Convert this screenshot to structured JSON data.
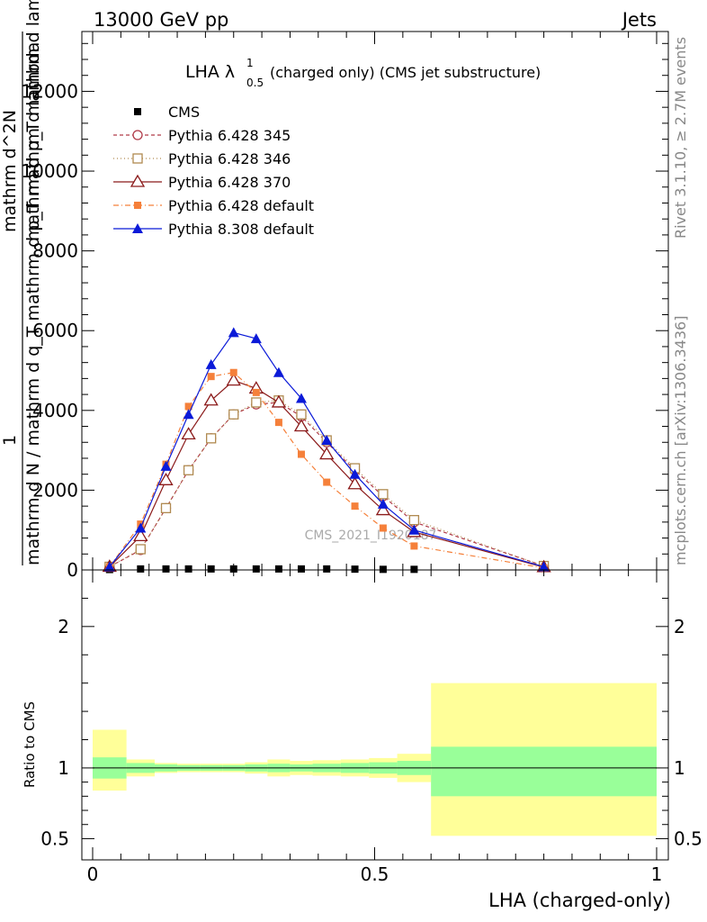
{
  "header": {
    "left": "13000 GeV pp",
    "right": "Jets"
  },
  "side_labels": {
    "rivet": "Rivet 3.1.10, ≥ 2.7M events",
    "mcplots": "mcplots.cern.ch [arXiv:1306.3436]"
  },
  "watermark": "CMS_2021_I1920187",
  "chart_data": [
    {
      "type": "line",
      "title_main": "LHA λ",
      "title_sup": "1",
      "title_sub": "0.5",
      "title_rest": "(charged only) (CMS jet substructure)",
      "ylabel_num": "1",
      "ylabel_den_lines": [
        "mathrm d N / mathrm d q_T mathrm d p_T mathrm d lambda",
        "mathrm d^2N"
      ],
      "ylabel_garbled": [
        "mathrm d^2N",
        "mathrm d p_T mathrm d lambda",
        "mathrm d N / mathrm d q mathrm d",
        "1"
      ],
      "xlim": [
        0,
        1
      ],
      "ylim": [
        0,
        13500
      ],
      "yticks": [
        0,
        2000,
        4000,
        6000,
        8000,
        10000,
        12000
      ],
      "ytick_labels": [
        "0",
        "2000",
        "4000",
        "6000",
        "8000",
        "10000",
        "12000"
      ],
      "legend_position": "top-left",
      "series": [
        {
          "name": "CMS",
          "color": "#000000",
          "marker": "square-filled",
          "dash": "none",
          "x": [
            0.03,
            0.085,
            0.13,
            0.17,
            0.21,
            0.25,
            0.29,
            0.33,
            0.37,
            0.415,
            0.465,
            0.515,
            0.57
          ],
          "y": [
            10,
            25,
            25,
            25,
            25,
            25,
            25,
            25,
            25,
            25,
            20,
            15,
            15
          ]
        },
        {
          "name": "Pythia 6.428 345",
          "color": "#b03a48",
          "marker": "circle-open",
          "dash": "4,3",
          "x": [
            0.03,
            0.085,
            0.13,
            0.17,
            0.21,
            0.25,
            0.29,
            0.33,
            0.37,
            0.415,
            0.465,
            0.515,
            0.57,
            0.8
          ],
          "y": [
            80,
            500,
            1550,
            2500,
            3300,
            3900,
            4150,
            4200,
            3850,
            3200,
            2500,
            1850,
            1200,
            100
          ]
        },
        {
          "name": "Pythia 6.428 346",
          "color": "#b08a50",
          "marker": "square-open",
          "dash": "1,3",
          "x": [
            0.03,
            0.085,
            0.13,
            0.17,
            0.21,
            0.25,
            0.29,
            0.33,
            0.37,
            0.415,
            0.465,
            0.515,
            0.57,
            0.8
          ],
          "y": [
            80,
            520,
            1550,
            2500,
            3300,
            3900,
            4200,
            4250,
            3900,
            3250,
            2550,
            1900,
            1250,
            100
          ]
        },
        {
          "name": "Pythia 6.428 370",
          "color": "#8b1a1a",
          "marker": "triangle-open",
          "dash": "none",
          "x": [
            0.03,
            0.085,
            0.13,
            0.17,
            0.21,
            0.25,
            0.29,
            0.33,
            0.37,
            0.415,
            0.465,
            0.515,
            0.57,
            0.8
          ],
          "y": [
            80,
            850,
            2250,
            3400,
            4250,
            4750,
            4550,
            4200,
            3600,
            2900,
            2150,
            1500,
            950,
            70
          ]
        },
        {
          "name": "Pythia 6.428 default",
          "color": "#f5803a",
          "marker": "square-filled",
          "dash": "6,3,1,3",
          "x": [
            0.03,
            0.085,
            0.13,
            0.17,
            0.21,
            0.25,
            0.29,
            0.33,
            0.37,
            0.415,
            0.465,
            0.515,
            0.57,
            0.8
          ],
          "y": [
            80,
            1150,
            2650,
            4100,
            4850,
            4950,
            4450,
            3700,
            2900,
            2200,
            1600,
            1050,
            600,
            50
          ]
        },
        {
          "name": "Pythia 8.308 default",
          "color": "#0b1ad8",
          "marker": "triangle-filled",
          "dash": "none",
          "x": [
            0.03,
            0.085,
            0.13,
            0.17,
            0.21,
            0.25,
            0.29,
            0.33,
            0.37,
            0.415,
            0.465,
            0.515,
            0.57,
            0.8
          ],
          "y": [
            80,
            1050,
            2600,
            3900,
            5150,
            5950,
            5800,
            4950,
            4300,
            3250,
            2400,
            1650,
            1000,
            80
          ]
        }
      ]
    },
    {
      "type": "area",
      "ylabel": "Ratio to CMS",
      "xlabel": "LHA (charged-only)",
      "xlim": [
        0,
        1
      ],
      "ylim": [
        0.35,
        2.4
      ],
      "xticks": [
        0,
        0.5,
        1
      ],
      "xtick_labels": [
        "0",
        "0.5",
        "1"
      ],
      "yticks": [
        0.5,
        1,
        2
      ],
      "ytick_labels": [
        "0.5",
        "1",
        "2"
      ],
      "reference_line": 1,
      "band_colors": {
        "inner": "#99ff99",
        "outer": "#ffff99"
      },
      "bins": [
        {
          "lo": 0.0,
          "hi": 0.06,
          "inner": [
            0.925,
            1.075
          ],
          "outer": [
            0.84,
            1.27
          ]
        },
        {
          "lo": 0.06,
          "hi": 0.11,
          "inner": [
            0.965,
            1.035
          ],
          "outer": [
            0.94,
            1.06
          ]
        },
        {
          "lo": 0.11,
          "hi": 0.15,
          "inner": [
            0.975,
            1.025
          ],
          "outer": [
            0.965,
            1.035
          ]
        },
        {
          "lo": 0.15,
          "hi": 0.19,
          "inner": [
            0.98,
            1.02
          ],
          "outer": [
            0.97,
            1.03
          ]
        },
        {
          "lo": 0.19,
          "hi": 0.23,
          "inner": [
            0.98,
            1.02
          ],
          "outer": [
            0.97,
            1.03
          ]
        },
        {
          "lo": 0.23,
          "hi": 0.27,
          "inner": [
            0.98,
            1.02
          ],
          "outer": [
            0.97,
            1.03
          ]
        },
        {
          "lo": 0.27,
          "hi": 0.31,
          "inner": [
            0.975,
            1.025
          ],
          "outer": [
            0.96,
            1.04
          ]
        },
        {
          "lo": 0.31,
          "hi": 0.35,
          "inner": [
            0.97,
            1.03
          ],
          "outer": [
            0.94,
            1.06
          ]
        },
        {
          "lo": 0.35,
          "hi": 0.39,
          "inner": [
            0.975,
            1.025
          ],
          "outer": [
            0.95,
            1.05
          ]
        },
        {
          "lo": 0.39,
          "hi": 0.44,
          "inner": [
            0.97,
            1.03
          ],
          "outer": [
            0.945,
            1.055
          ]
        },
        {
          "lo": 0.44,
          "hi": 0.49,
          "inner": [
            0.965,
            1.035
          ],
          "outer": [
            0.94,
            1.06
          ]
        },
        {
          "lo": 0.49,
          "hi": 0.54,
          "inner": [
            0.96,
            1.04
          ],
          "outer": [
            0.93,
            1.07
          ]
        },
        {
          "lo": 0.54,
          "hi": 0.6,
          "inner": [
            0.95,
            1.05
          ],
          "outer": [
            0.9,
            1.1
          ]
        },
        {
          "lo": 0.6,
          "hi": 1.0,
          "inner": [
            0.8,
            1.15
          ],
          "outer": [
            0.52,
            1.6
          ]
        }
      ]
    }
  ]
}
